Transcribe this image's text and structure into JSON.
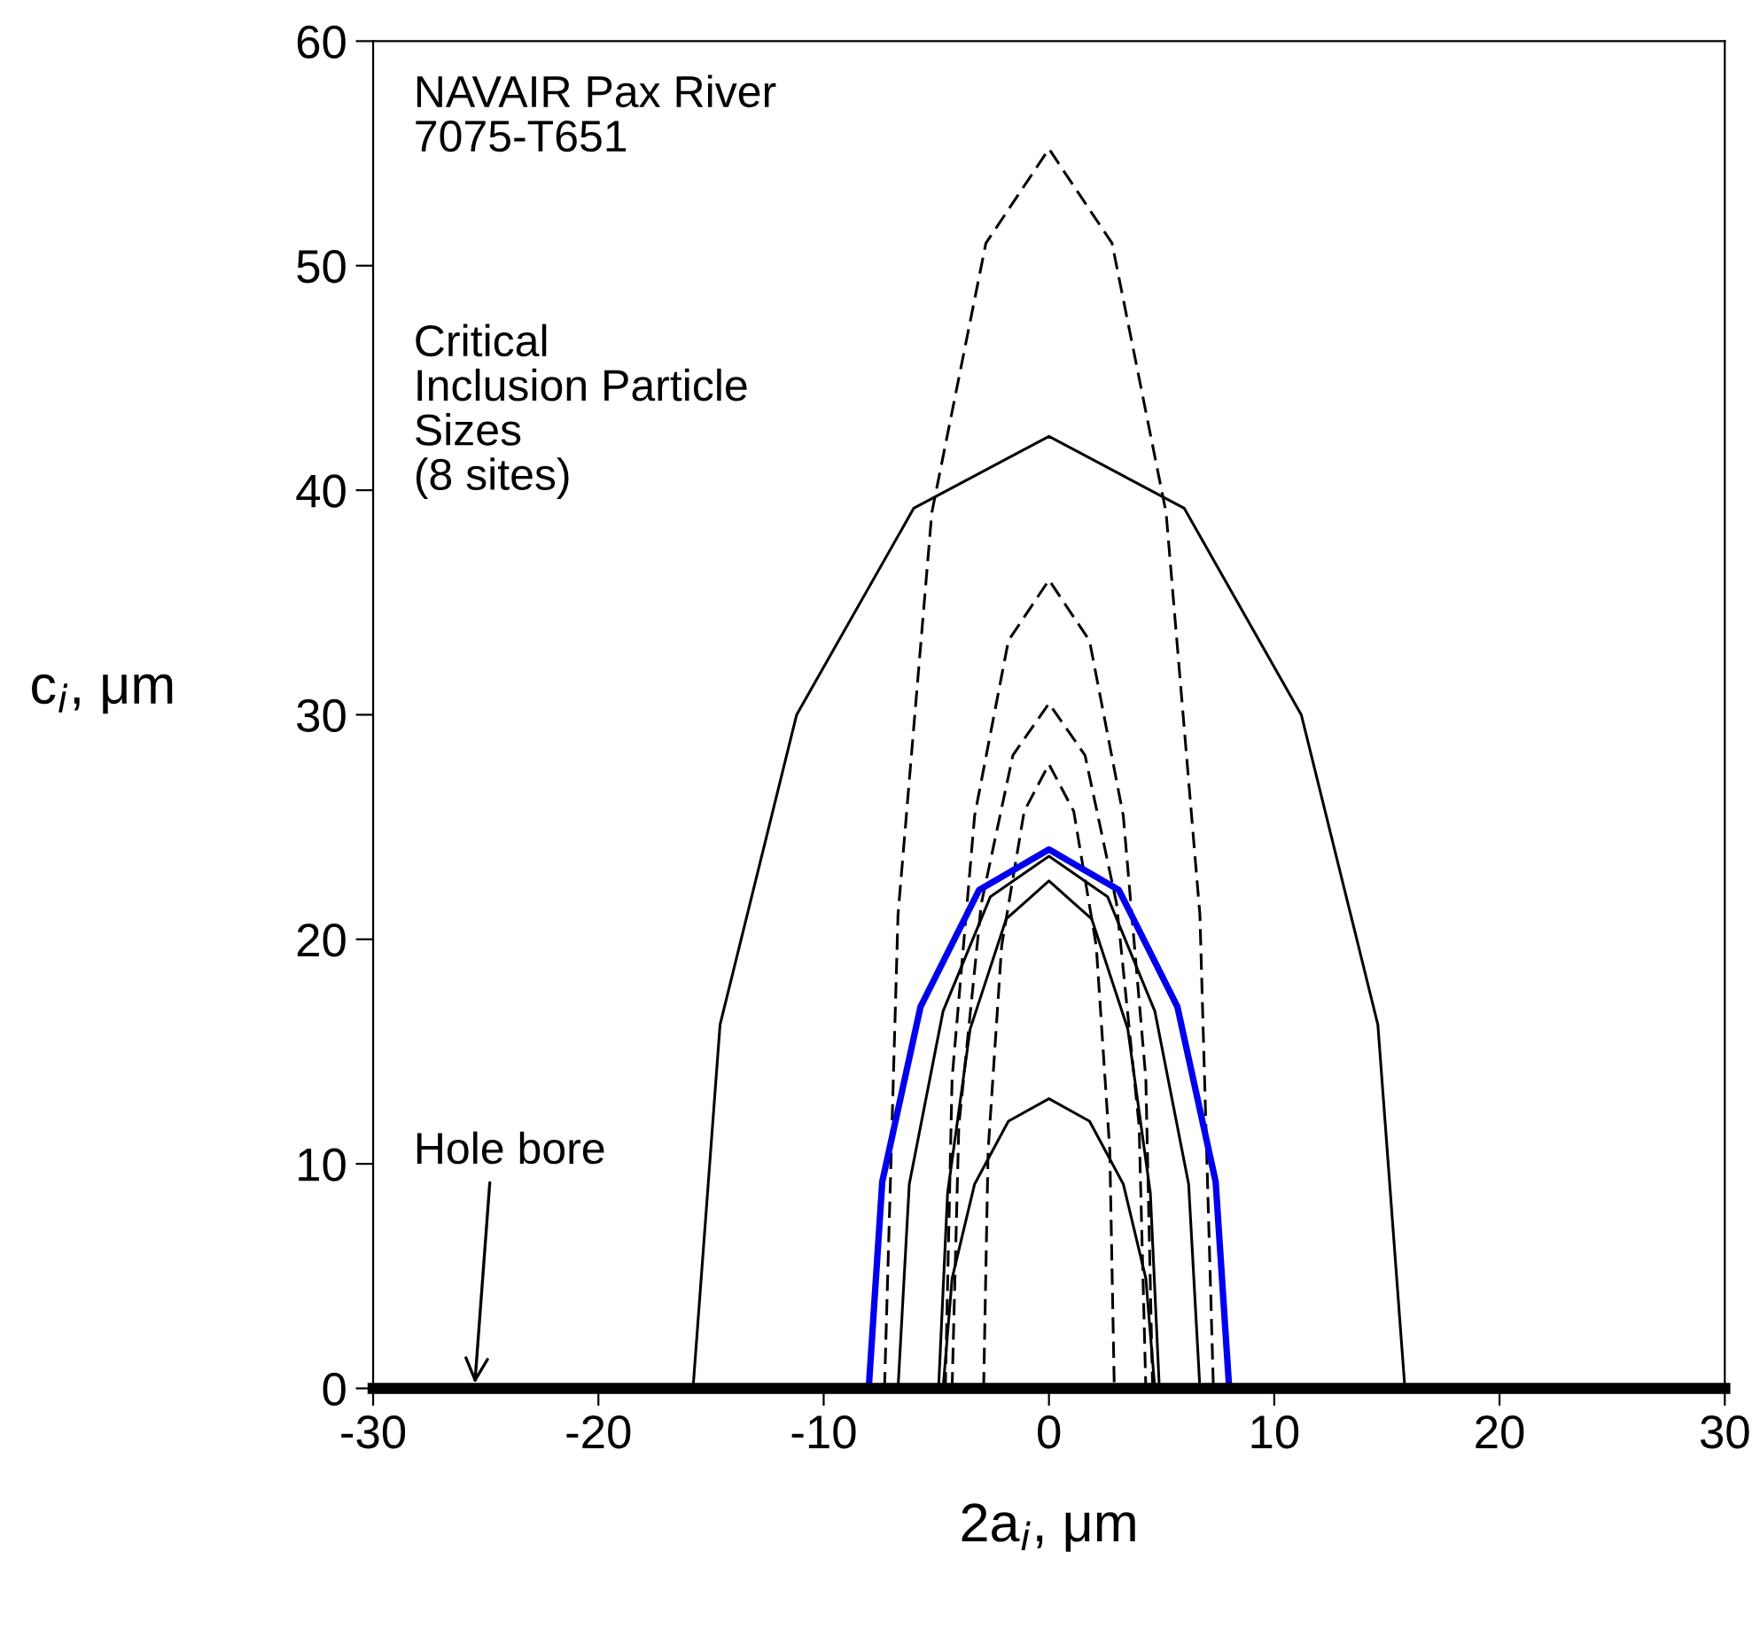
{
  "chart_data": {
    "type": "line",
    "xlabel": "2a$_{i}$, μm",
    "ylabel": "c$_{i}$, μm",
    "xlim": [
      -30,
      30
    ],
    "ylim": [
      0,
      60
    ],
    "xticks": [
      -30,
      -20,
      -10,
      0,
      10,
      20,
      30
    ],
    "yticks": [
      0,
      10,
      20,
      30,
      40,
      50,
      60
    ],
    "grid": false,
    "marker": "none",
    "annotations": [
      "NAVAIR Pax River\n7075-T651",
      "Critical\nInclusion Particle\nSizes\n(8 sites)",
      "Hole bore"
    ],
    "series": [
      {
        "color": "#000000",
        "line_style": "solid",
        "x": [
          -15.8,
          -14.6,
          -11.2,
          -6.0,
          0,
          6.0,
          11.2,
          14.6,
          15.8
        ],
        "values": [
          0,
          16.2,
          30.0,
          39.2,
          42.4,
          39.2,
          30.0,
          16.2,
          0
        ]
      },
      {
        "color": "#000000",
        "line_style": "solid",
        "x": [
          -6.7,
          -6.2,
          -4.7,
          -2.6,
          0,
          2.6,
          4.7,
          6.2,
          6.7
        ],
        "values": [
          0,
          9.1,
          16.8,
          21.9,
          23.7,
          21.9,
          16.8,
          9.1,
          0
        ]
      },
      {
        "color": "#000000",
        "line_style": "solid",
        "x": [
          -4.9,
          -4.5,
          -3.5,
          -1.9,
          0,
          1.9,
          3.5,
          4.5,
          4.9
        ],
        "values": [
          0,
          8.7,
          16.0,
          20.9,
          22.6,
          20.9,
          16.0,
          8.7,
          0
        ]
      },
      {
        "color": "#000000",
        "line_style": "solid",
        "x": [
          -4.7,
          -4.3,
          -3.3,
          -1.8,
          0,
          1.8,
          3.3,
          4.3,
          4.7
        ],
        "values": [
          0,
          4.9,
          9.1,
          11.9,
          12.9,
          11.9,
          9.1,
          4.9,
          0
        ]
      },
      {
        "color": "#0000ee",
        "line_style": "solid",
        "x": [
          -8.0,
          -7.4,
          -5.7,
          -3.1,
          0,
          3.1,
          5.7,
          7.4,
          8.0
        ],
        "values": [
          0,
          9.2,
          17.0,
          22.2,
          24.0,
          22.2,
          17.0,
          9.2,
          0
        ]
      },
      {
        "color": "#000000",
        "line_style": "dashed",
        "x": [
          -7.3,
          -6.7,
          -5.2,
          -2.8,
          0,
          2.8,
          5.2,
          6.7,
          7.3
        ],
        "values": [
          0,
          21.1,
          39.0,
          51.0,
          55.2,
          51.0,
          39.0,
          21.1,
          0
        ]
      },
      {
        "color": "#000000",
        "line_style": "dashed",
        "x": [
          -4.6,
          -4.3,
          -3.3,
          -1.8,
          0,
          1.8,
          3.3,
          4.3,
          4.6
        ],
        "values": [
          0,
          13.8,
          25.5,
          33.3,
          36.0,
          33.3,
          25.5,
          13.8,
          0
        ]
      },
      {
        "color": "#000000",
        "line_style": "dashed",
        "x": [
          -4.3,
          -4.0,
          -3.0,
          -1.6,
          0,
          1.6,
          3.0,
          4.0,
          4.3
        ],
        "values": [
          0,
          11.7,
          21.6,
          28.2,
          30.5,
          28.2,
          21.6,
          11.7,
          0
        ]
      },
      {
        "color": "#000000",
        "line_style": "dashed",
        "x": [
          -2.9,
          -2.7,
          -2.1,
          -1.1,
          0,
          1.1,
          2.1,
          2.7,
          2.9
        ],
        "values": [
          0,
          10.6,
          19.7,
          25.7,
          27.8,
          25.7,
          19.7,
          10.6,
          0
        ]
      }
    ]
  }
}
